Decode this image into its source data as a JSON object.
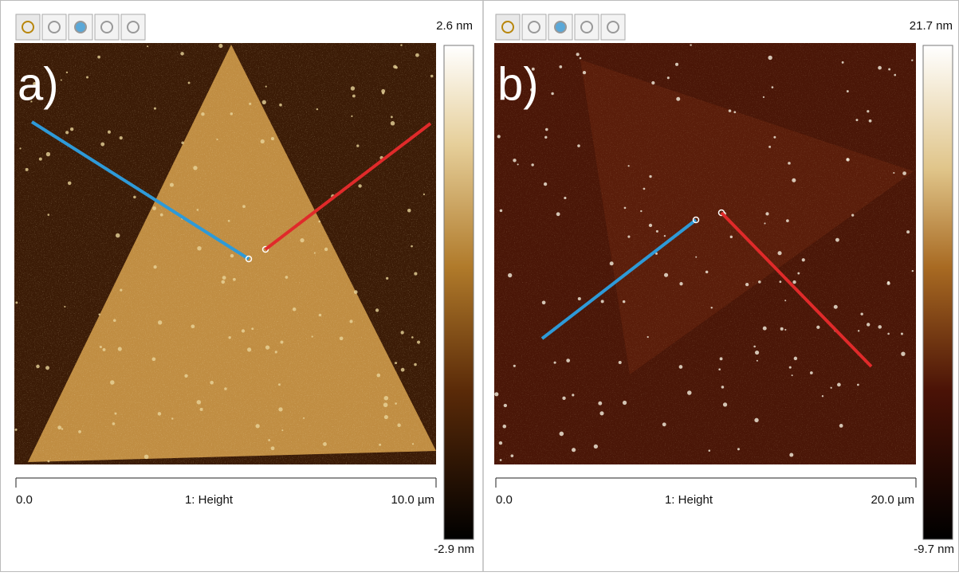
{
  "panels": [
    {
      "letter": "a)",
      "colorbar_max": "2.6 nm",
      "colorbar_min": "-2.9 nm",
      "axis_start": "0.0",
      "channel": "1: Height",
      "axis_end": "10.0 µm"
    },
    {
      "letter": "b)",
      "colorbar_max": "21.7 nm",
      "colorbar_min": "-9.7 nm",
      "axis_start": "0.0",
      "channel": "1: Height",
      "axis_end": "20.0 µm"
    }
  ]
}
